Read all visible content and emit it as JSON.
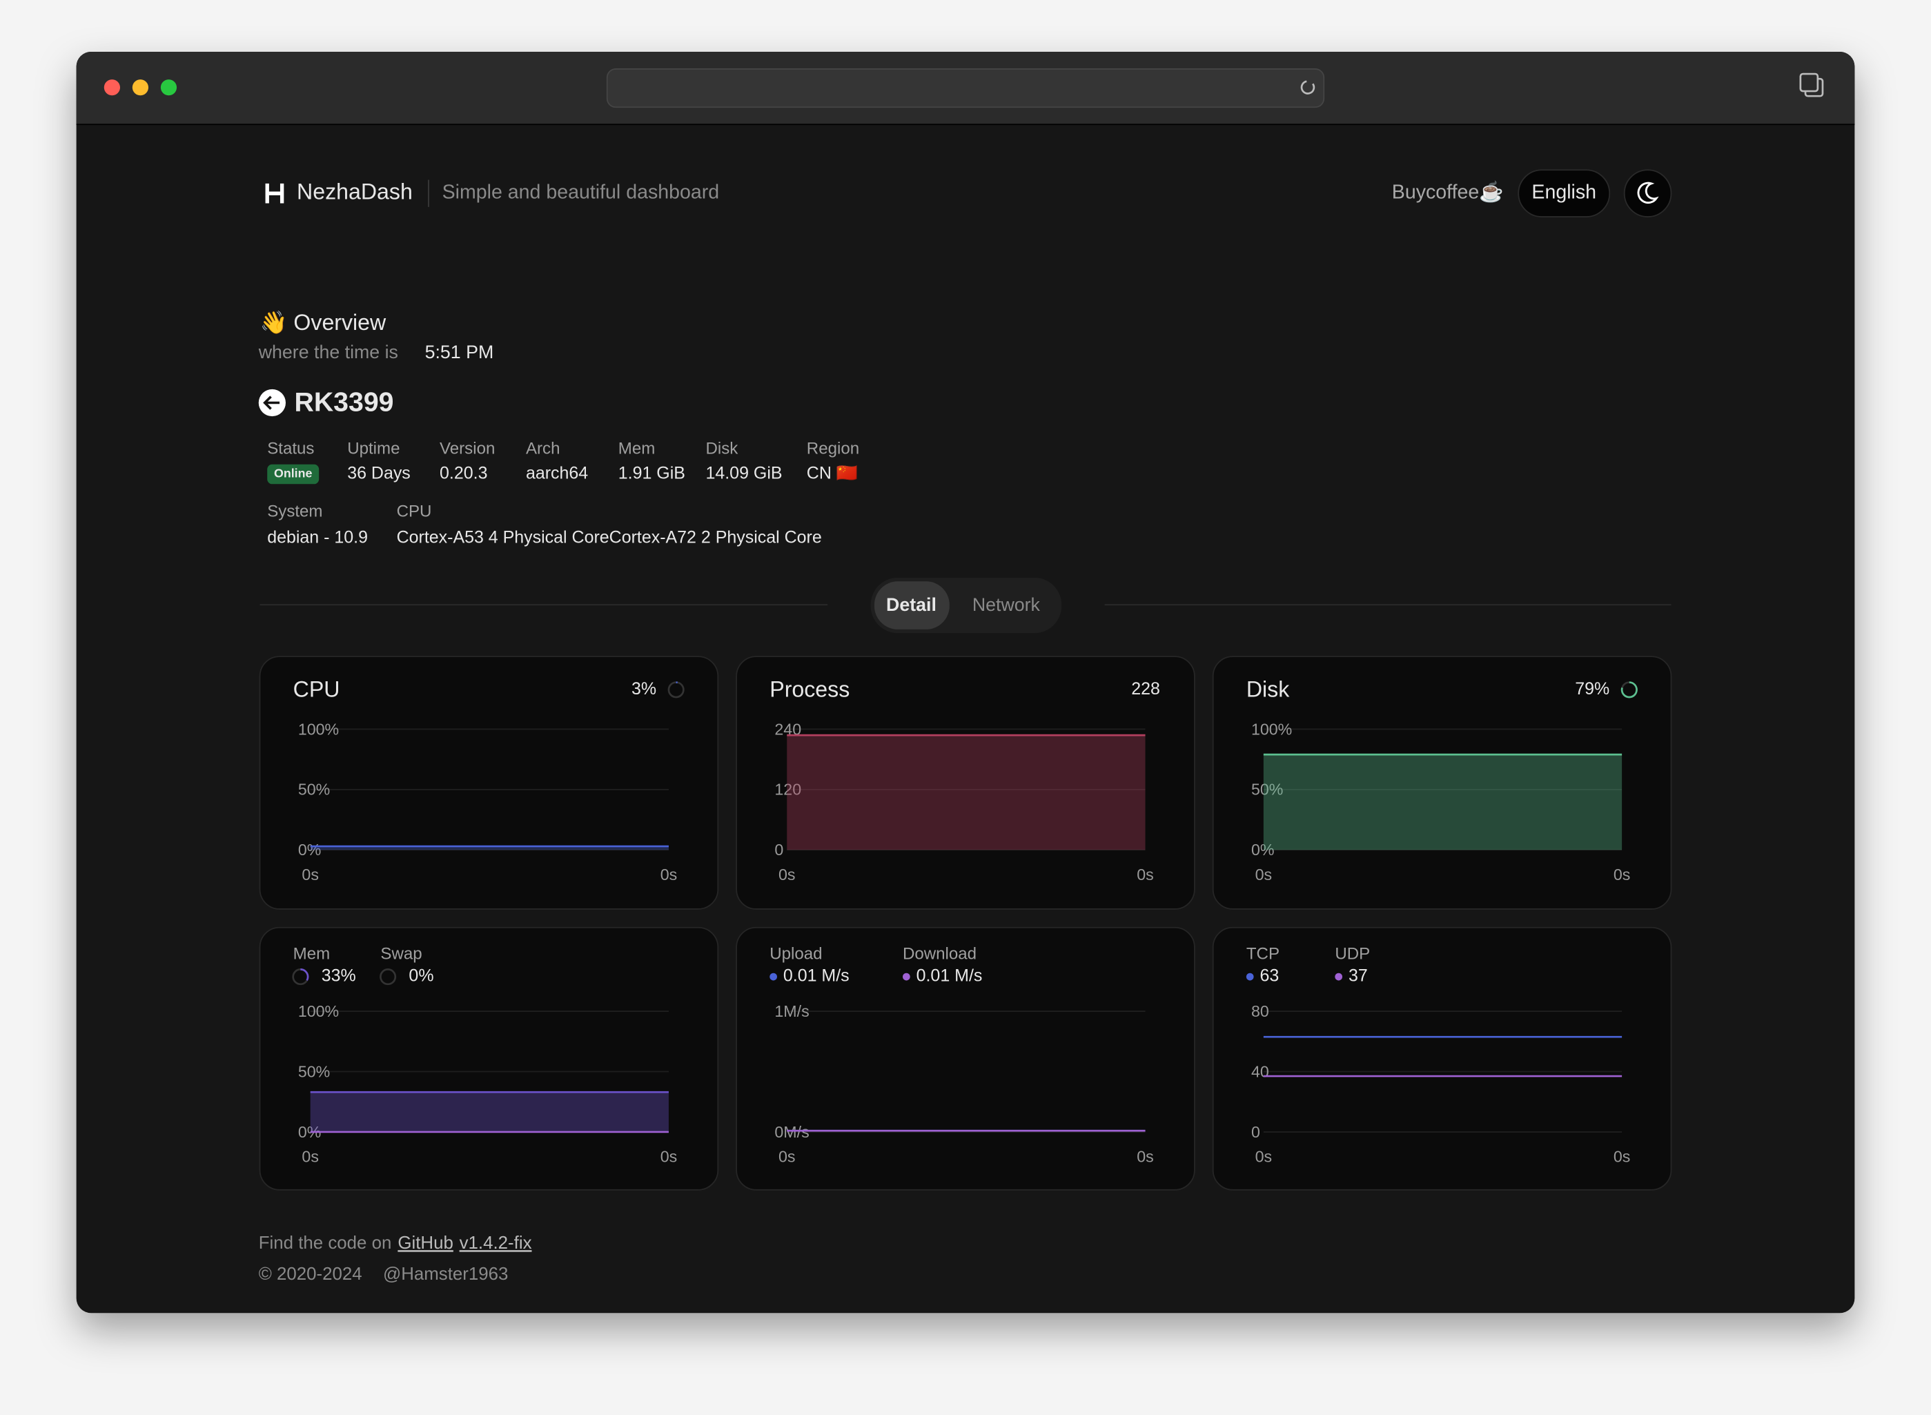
{
  "header": {
    "brand": "NezhaDash",
    "tagline": "Simple and beautiful dashboard",
    "buy": "Buycoffee☕",
    "language": "English"
  },
  "overview": {
    "title": "👋 Overview",
    "time_label": "where the time is",
    "time": "5:51 PM"
  },
  "server": {
    "name": "RK3399",
    "fields": [
      {
        "label": "Status",
        "value": "Online"
      },
      {
        "label": "Uptime",
        "value": "36 Days"
      },
      {
        "label": "Version",
        "value": "0.20.3"
      },
      {
        "label": "Arch",
        "value": "aarch64"
      },
      {
        "label": "Mem",
        "value": "1.91 GiB"
      },
      {
        "label": "Disk",
        "value": "14.09 GiB"
      },
      {
        "label": "Region",
        "value": "CN 🇨🇳"
      }
    ],
    "fields2": [
      {
        "label": "System",
        "value": "debian - 10.9"
      },
      {
        "label": "CPU",
        "value": "Cortex-A53 4 Physical CoreCortex-A72 2 Physical Core"
      }
    ]
  },
  "tabs": [
    "Detail",
    "Network"
  ],
  "cards": [
    {
      "title": "CPU",
      "stat_label": "3%",
      "chart": {
        "type": "area",
        "ylim": [
          0,
          100
        ],
        "yticks": [
          {
            "value": 0,
            "label": "0%"
          },
          {
            "value": 50,
            "label": "50%"
          },
          {
            "value": 100,
            "label": "100%"
          }
        ],
        "xticks": [
          "0s",
          "0s"
        ],
        "series": [
          {
            "color": "#4a63d8",
            "values": [
              3,
              3
            ]
          }
        ]
      }
    },
    {
      "title": "Process",
      "chart": {
        "type": "area",
        "ylim": [
          0,
          240
        ],
        "yticks": [
          0,
          120,
          240
        ],
        "xticks": [
          "0s",
          "0s"
        ],
        "series": [
          {
            "color": "#b3405f",
            "values": [
              228,
              228
            ]
          }
        ]
      }
    },
    {
      "title": "Disk",
      "stat_label": "79%",
      "chart": {
        "type": "area",
        "ylim": [
          0,
          100
        ],
        "yticks": [
          {
            "value": 0,
            "label": "0%"
          },
          {
            "value": 50,
            "label": "50%"
          },
          {
            "value": 100,
            "label": "100%"
          }
        ],
        "xticks": [
          "0s",
          "0s"
        ],
        "series": [
          {
            "color": "#5cc090",
            "values": [
              79,
              79
            ]
          }
        ]
      }
    },
    {
      "chart": {
        "type": "area",
        "ylim": [
          0,
          100
        ],
        "yticks": [
          {
            "value": 0,
            "label": "0%"
          },
          {
            "value": 50,
            "label": "50%"
          },
          {
            "value": 100,
            "label": "100%"
          }
        ],
        "xticks": [
          "0s",
          "0s"
        ],
        "series": [
          {
            "name": "Mem",
            "value_label": "33%",
            "color": "#6c52cc",
            "values": [
              33,
              33
            ]
          },
          {
            "name": "Swap",
            "value_label": "0%",
            "color": "#a062d4",
            "values": [
              0,
              0
            ]
          }
        ]
      }
    },
    {
      "chart": {
        "type": "line",
        "ylim": [
          0,
          1
        ],
        "yticks": [
          {
            "value": 0,
            "label": "0M/s"
          },
          {
            "value": 1,
            "label": "1M/s"
          }
        ],
        "xticks": [
          "0s",
          "0s"
        ],
        "series": [
          {
            "name": "Upload",
            "value_label": "0.01 M/s",
            "color": "#4a63d8",
            "values": [
              0.01,
              0.01
            ]
          },
          {
            "name": "Download",
            "value_label": "0.01 M/s",
            "color": "#a062d4",
            "values": [
              0.01,
              0.01
            ]
          }
        ]
      }
    },
    {
      "chart": {
        "type": "line",
        "ylim": [
          0,
          80
        ],
        "yticks": [
          0,
          40,
          80
        ],
        "xticks": [
          "0s",
          "0s"
        ],
        "series": [
          {
            "name": "TCP",
            "color": "#4a63d8",
            "values": [
              63,
              63
            ]
          },
          {
            "name": "UDP",
            "color": "#a062d4",
            "values": [
              37,
              37
            ]
          }
        ]
      }
    }
  ],
  "footer": {
    "prefix": "Find the code on",
    "github": "GitHub",
    "version": "v1.4.2-fix",
    "copyright": "© 2020-2024",
    "author": "@Hamster1963"
  }
}
